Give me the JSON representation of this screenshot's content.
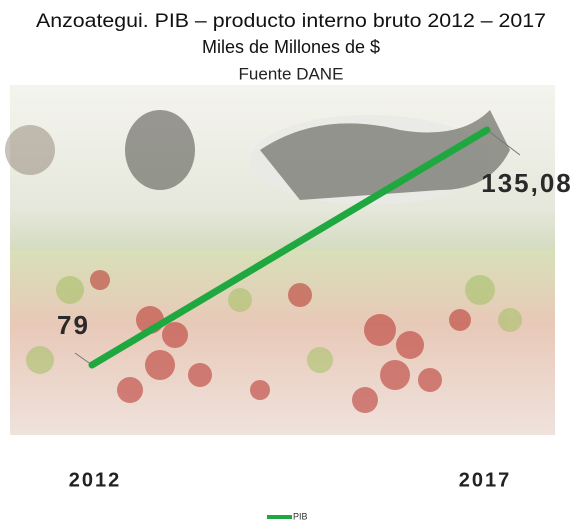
{
  "chart_data": {
    "type": "line",
    "title": "Anzoategui. PIB – producto interno bruto  2012 – 2017",
    "subtitle": "Miles de Millones de $",
    "source": "Fuente DANE",
    "categories": [
      "2012",
      "2017"
    ],
    "series": [
      {
        "name": "PIB",
        "color": "#1fa83f",
        "values": [
          79,
          135.08
        ],
        "value_labels": [
          "79",
          "135,08"
        ]
      }
    ],
    "legend": "bottom"
  }
}
